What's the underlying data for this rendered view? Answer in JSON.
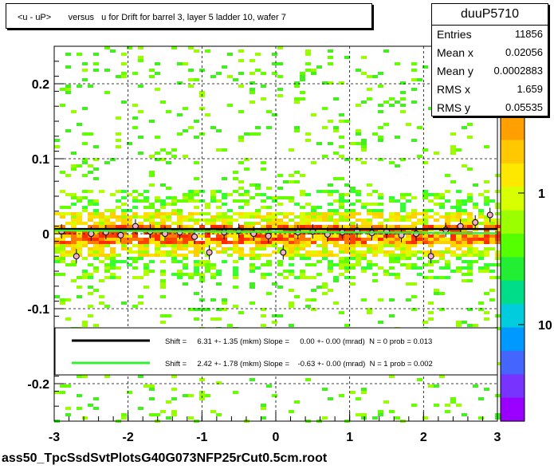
{
  "title": "<u - uP>       versus   u for Drift for barrel 3, layer 5 ladder 10, wafer 7",
  "stats": {
    "name": "duuP5710",
    "rows": [
      {
        "label": "Entries",
        "value": "11856"
      },
      {
        "label": "Mean x",
        "value": "0.02056"
      },
      {
        "label": "Mean y",
        "value": "0.0002883"
      },
      {
        "label": "RMS x",
        "value": "1.659"
      },
      {
        "label": "RMS y",
        "value": "0.05535"
      }
    ]
  },
  "footer": "ass50_TpcSsdSvtPlotsG40G073NFP25rCut0.5cm.root",
  "chart_data": {
    "type": "heatmap",
    "xlim": [
      -3,
      3
    ],
    "ylim": [
      -0.25,
      0.25
    ],
    "x_ticks": [
      "-3",
      "-2",
      "-1",
      "0",
      "1",
      "2",
      "3"
    ],
    "y_ticks": [
      "-0.2",
      "-0.1",
      "0",
      "0.1",
      "0.2"
    ],
    "z_scale": "log",
    "z_ticks": [
      "1",
      "10"
    ],
    "z_partial_label": "0",
    "grid": true,
    "profile_points": [
      {
        "x": -2.9,
        "y": 0.003
      },
      {
        "x": -2.7,
        "y": -0.03
      },
      {
        "x": -2.5,
        "y": 0.0
      },
      {
        "x": -2.3,
        "y": 0.002
      },
      {
        "x": -2.1,
        "y": -0.002
      },
      {
        "x": -1.9,
        "y": 0.01
      },
      {
        "x": -1.7,
        "y": 0.003
      },
      {
        "x": -1.5,
        "y": 0.0
      },
      {
        "x": -1.3,
        "y": 0.002
      },
      {
        "x": -1.1,
        "y": -0.004
      },
      {
        "x": -0.9,
        "y": -0.025
      },
      {
        "x": -0.7,
        "y": 0.002
      },
      {
        "x": -0.5,
        "y": 0.004
      },
      {
        "x": -0.3,
        "y": 0.0
      },
      {
        "x": -0.1,
        "y": -0.003
      },
      {
        "x": 0.1,
        "y": -0.025
      },
      {
        "x": 0.3,
        "y": 0.002
      },
      {
        "x": 0.5,
        "y": 0.003
      },
      {
        "x": 0.7,
        "y": -0.001
      },
      {
        "x": 0.9,
        "y": 0.002
      },
      {
        "x": 1.1,
        "y": 0.004
      },
      {
        "x": 1.3,
        "y": 0.001
      },
      {
        "x": 1.5,
        "y": 0.003
      },
      {
        "x": 1.7,
        "y": -0.002
      },
      {
        "x": 1.9,
        "y": 0.0
      },
      {
        "x": 2.1,
        "y": -0.03
      },
      {
        "x": 2.3,
        "y": 0.005
      },
      {
        "x": 2.5,
        "y": 0.01
      },
      {
        "x": 2.7,
        "y": 0.015
      },
      {
        "x": 2.9,
        "y": 0.025
      }
    ],
    "fits": [
      {
        "color": "#000000",
        "text": "Shift =     6.31 +- 1.35 (mkm) Slope =     0.00 +- 0.00 (mrad)  N = 0 prob = 0.013",
        "y0": 0.00631,
        "slope": 0.0
      },
      {
        "color": "#33ee33",
        "text": "Shift =     2.42 +- 1.78 (mkm) Slope =    -0.63 +- 0.00 (mrad)  N = 1 prob = 0.002",
        "y0": 0.00242,
        "slope": -0.00063
      }
    ]
  }
}
